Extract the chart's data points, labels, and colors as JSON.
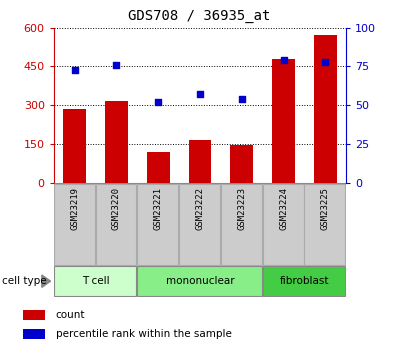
{
  "title": "GDS708 / 36935_at",
  "samples": [
    "GSM23219",
    "GSM23220",
    "GSM23221",
    "GSM23222",
    "GSM23223",
    "GSM23224",
    "GSM23225"
  ],
  "counts": [
    285,
    315,
    120,
    165,
    145,
    480,
    570
  ],
  "percentiles": [
    73,
    76,
    52,
    57,
    54,
    79,
    78
  ],
  "cell_types": [
    {
      "label": "T cell",
      "start": 0,
      "end": 2,
      "color": "#ccffcc"
    },
    {
      "label": "mononuclear",
      "start": 2,
      "end": 5,
      "color": "#88ee88"
    },
    {
      "label": "fibroblast",
      "start": 5,
      "end": 7,
      "color": "#44cc44"
    }
  ],
  "ylim_left": [
    0,
    600
  ],
  "ylim_right": [
    0,
    100
  ],
  "yticks_left": [
    0,
    150,
    300,
    450,
    600
  ],
  "yticks_right": [
    0,
    25,
    50,
    75,
    100
  ],
  "bar_color": "#cc0000",
  "dot_color": "#0000cc",
  "title_fontsize": 10,
  "tick_fontsize": 8,
  "left_axis_color": "#cc0000",
  "right_axis_color": "#0000cc",
  "sample_box_color": "#cccccc",
  "sample_box_edge": "#aaaaaa"
}
